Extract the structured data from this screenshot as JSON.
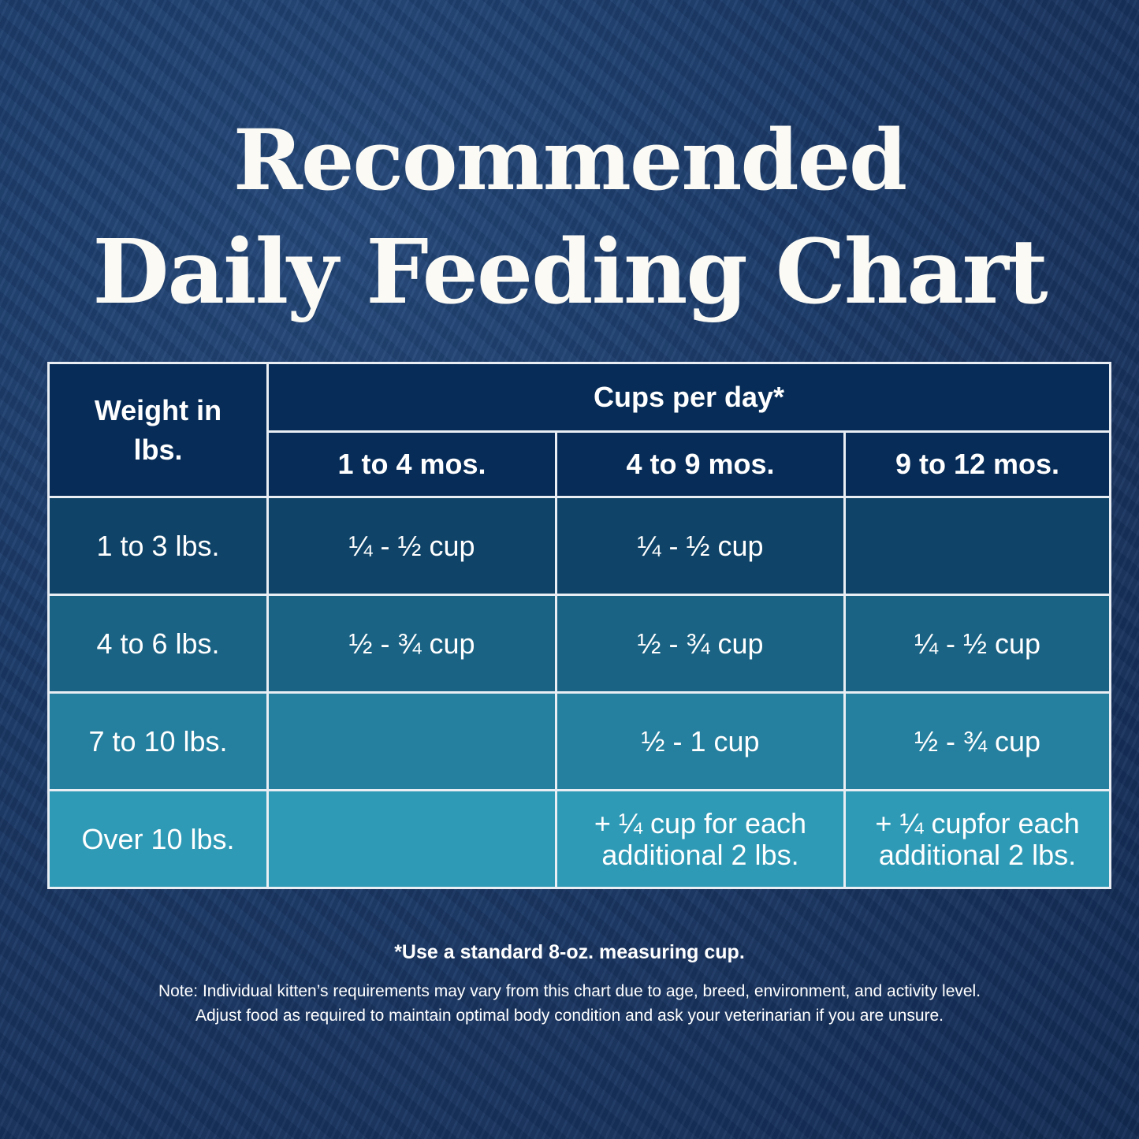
{
  "title": {
    "line1": "Recommended",
    "line2": "Daily Feeding Chart"
  },
  "colors": {
    "background": "#1b3a69",
    "header": "#062c57",
    "row_shades": [
      "#0f4468",
      "#1a6384",
      "#257f9e",
      "#2f9ab6"
    ],
    "grid": "#e8eef3"
  },
  "chart_data": {
    "type": "table",
    "row_header_label": "Weight in lbs.",
    "group_header": "Cups per day*",
    "columns": [
      "1 to 4 mos.",
      "4 to 9 mos.",
      "9 to 12 mos."
    ],
    "rows": [
      {
        "weight": "1 to 3 lbs.",
        "cells": [
          "¼ - ½ cup",
          "¼ - ½ cup",
          ""
        ]
      },
      {
        "weight": "4 to 6 lbs.",
        "cells": [
          "½ - ¾ cup",
          "½ - ¾ cup",
          "¼ - ½ cup"
        ]
      },
      {
        "weight": "7 to 10 lbs.",
        "cells": [
          "",
          "½ - 1 cup",
          "½ - ¾ cup"
        ]
      },
      {
        "weight": "Over 10 lbs.",
        "cells": [
          "",
          "+ ¼ cup for each additional 2 lbs.",
          "+ ¼ cupfor each additional 2 lbs."
        ]
      }
    ]
  },
  "footer": {
    "footnote": "*Use a standard 8-oz. measuring cup.",
    "note_line1": "Note: Individual kitten’s requirements may vary from this chart due to age, breed, environment, and activity level.",
    "note_line2": "Adjust food as required to maintain optimal body condition and ask your veterinarian if you are unsure."
  }
}
